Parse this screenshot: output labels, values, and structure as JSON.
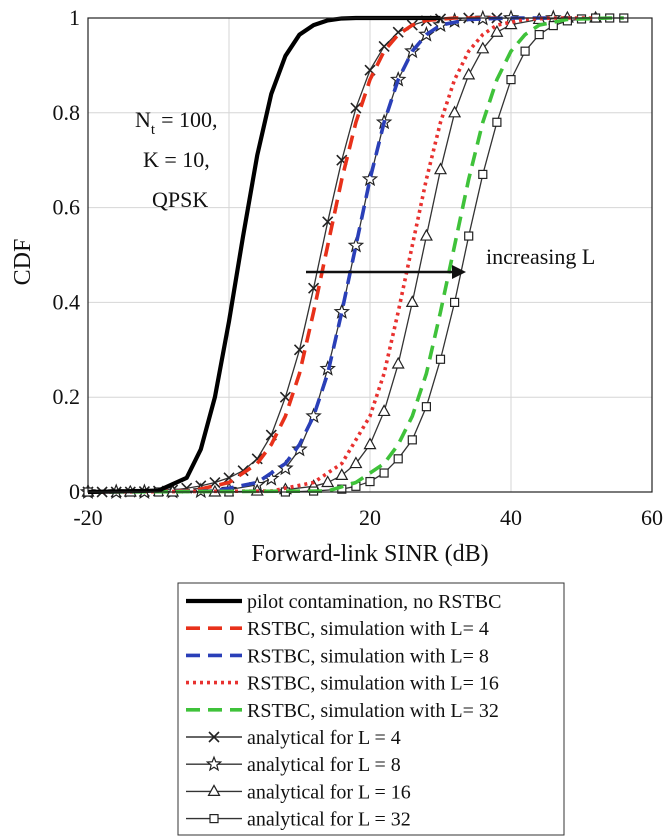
{
  "chart_data": {
    "type": "line",
    "title": "",
    "xlabel": "Forward-link SINR (dB)",
    "ylabel": "CDF",
    "xlim": [
      -20,
      60
    ],
    "ylim": [
      0,
      1
    ],
    "xticks": [
      "-20",
      "0",
      "20",
      "40",
      "60"
    ],
    "yticks": [
      "0",
      "0.2",
      "0.4",
      "0.6",
      "0.8",
      "1"
    ],
    "grid": true,
    "annotations": {
      "params": [
        "N",
        "t",
        "= 100,",
        "K = 10,",
        "QPSK"
      ],
      "arrow_label": "increasing L"
    },
    "legend_position": "below plot",
    "series": [
      {
        "name": "pilot contamination, no RSTBC",
        "style": "solid",
        "color": "#000000",
        "marker": "none",
        "x": [
          -20,
          -10,
          -6,
          -4,
          -2,
          0,
          2,
          4,
          6,
          8,
          10,
          12,
          14,
          16,
          18,
          20,
          24,
          30
        ],
        "y": [
          0,
          0.003,
          0.03,
          0.09,
          0.2,
          0.36,
          0.54,
          0.71,
          0.84,
          0.92,
          0.965,
          0.985,
          0.995,
          0.999,
          1.0,
          1.0,
          1.0,
          1.0
        ]
      },
      {
        "name": "RSTBC, simulation with L=  4",
        "style": "dashed",
        "color": "#e8311a",
        "marker": "none",
        "x": [
          -20,
          -5,
          0,
          4,
          6,
          8,
          10,
          12,
          14,
          16,
          18,
          20,
          22,
          24,
          26,
          28,
          32,
          38
        ],
        "y": [
          0,
          0.003,
          0.02,
          0.06,
          0.1,
          0.16,
          0.25,
          0.38,
          0.52,
          0.66,
          0.78,
          0.87,
          0.93,
          0.965,
          0.985,
          0.995,
          1.0,
          1.0
        ]
      },
      {
        "name": "RSTBC, simulation with L=  8",
        "style": "dashed",
        "color": "#2a3fb8",
        "marker": "none",
        "x": [
          -20,
          -2,
          4,
          8,
          10,
          12,
          14,
          16,
          18,
          20,
          22,
          24,
          26,
          28,
          30,
          34,
          40,
          46
        ],
        "y": [
          0,
          0.002,
          0.02,
          0.06,
          0.1,
          0.16,
          0.25,
          0.38,
          0.52,
          0.66,
          0.78,
          0.87,
          0.93,
          0.965,
          0.985,
          0.997,
          1.0,
          1.0
        ]
      },
      {
        "name": "RSTBC, simulation with L=  16",
        "style": "dotted",
        "color": "#e8312f",
        "marker": "none",
        "x": [
          -20,
          6,
          12,
          16,
          20,
          22,
          24,
          26,
          28,
          30,
          32,
          34,
          36,
          38,
          42,
          46,
          52
        ],
        "y": [
          0,
          0.002,
          0.02,
          0.06,
          0.16,
          0.25,
          0.38,
          0.52,
          0.66,
          0.78,
          0.87,
          0.93,
          0.965,
          0.985,
          0.997,
          1.0,
          1.0
        ]
      },
      {
        "name": "RSTBC, simulation with L=  32",
        "style": "dashed",
        "color": "#3fc23a",
        "marker": "none",
        "x": [
          -20,
          14,
          18,
          22,
          24,
          26,
          28,
          30,
          32,
          34,
          36,
          38,
          40,
          42,
          44,
          48,
          54,
          56
        ],
        "y": [
          0,
          0.002,
          0.02,
          0.06,
          0.1,
          0.16,
          0.25,
          0.38,
          0.52,
          0.66,
          0.78,
          0.87,
          0.93,
          0.965,
          0.985,
          0.997,
          1.0,
          1.0
        ]
      },
      {
        "name": "analytical for L = 4",
        "style": "solid-thin",
        "color": "#333333",
        "marker": "x",
        "x": [
          -20,
          -18,
          -16,
          -14,
          -12,
          -10,
          -8,
          -6,
          -4,
          -2,
          0,
          2,
          4,
          6,
          8,
          10,
          12,
          14,
          16,
          18,
          20,
          22,
          24,
          26,
          28,
          30,
          34,
          38
        ],
        "y": [
          0,
          0,
          0,
          0,
          0.001,
          0.002,
          0.004,
          0.008,
          0.013,
          0.02,
          0.03,
          0.045,
          0.07,
          0.12,
          0.2,
          0.3,
          0.43,
          0.57,
          0.7,
          0.81,
          0.89,
          0.94,
          0.97,
          0.985,
          0.994,
          0.998,
          1.0,
          1.0
        ]
      },
      {
        "name": "analytical for L = 8",
        "style": "solid-thin",
        "color": "#333333",
        "marker": "star",
        "x": [
          -20,
          -16,
          -12,
          -8,
          -4,
          0,
          4,
          6,
          8,
          10,
          12,
          14,
          16,
          18,
          20,
          22,
          24,
          26,
          28,
          30,
          32,
          36,
          40,
          46
        ],
        "y": [
          0,
          0,
          0,
          0.001,
          0.002,
          0.005,
          0.015,
          0.028,
          0.05,
          0.09,
          0.16,
          0.26,
          0.38,
          0.52,
          0.66,
          0.78,
          0.87,
          0.93,
          0.965,
          0.985,
          0.994,
          0.999,
          1.0,
          1.0
        ]
      },
      {
        "name": "analytical for L = 16",
        "style": "solid-thin",
        "color": "#333333",
        "marker": "triangle",
        "x": [
          -20,
          -14,
          -8,
          -2,
          4,
          8,
          12,
          14,
          16,
          18,
          20,
          22,
          24,
          26,
          28,
          30,
          32,
          34,
          36,
          38,
          40,
          44,
          48,
          52
        ],
        "y": [
          0,
          0,
          0,
          0,
          0.002,
          0.005,
          0.012,
          0.02,
          0.035,
          0.06,
          0.1,
          0.17,
          0.27,
          0.4,
          0.54,
          0.68,
          0.8,
          0.88,
          0.935,
          0.97,
          0.986,
          0.997,
          1.0,
          1.0
        ]
      },
      {
        "name": "analytical for L = 32",
        "style": "solid-thin",
        "color": "#333333",
        "marker": "square",
        "x": [
          -20,
          -10,
          0,
          8,
          12,
          16,
          18,
          20,
          22,
          24,
          26,
          28,
          30,
          32,
          34,
          36,
          38,
          40,
          42,
          44,
          46,
          48,
          50,
          52,
          54,
          56
        ],
        "y": [
          0,
          0,
          0,
          0,
          0.002,
          0.006,
          0.012,
          0.022,
          0.04,
          0.07,
          0.11,
          0.18,
          0.28,
          0.4,
          0.54,
          0.67,
          0.78,
          0.87,
          0.93,
          0.965,
          0.984,
          0.994,
          0.998,
          1.0,
          1.0,
          1.0
        ]
      }
    ]
  }
}
